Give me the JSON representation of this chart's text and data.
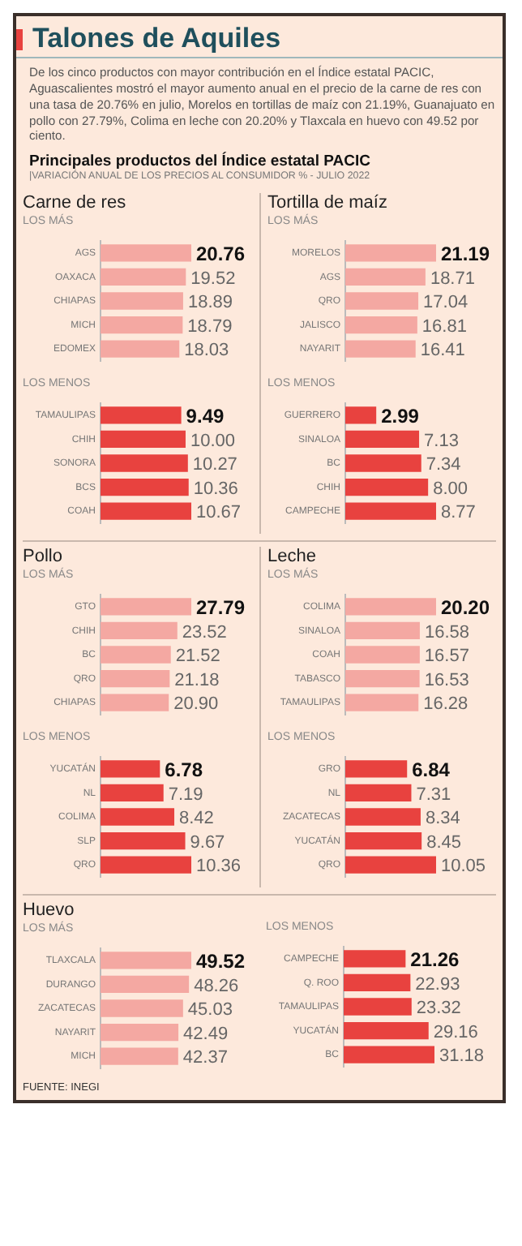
{
  "chart_data": [
    {
      "type": "other",
      "title": "Talones de Aquiles",
      "subtitle": "De los cinco productos con mayor contribución en el Índice estatal PACIC, Aguascalientes mostró el mayor aumento anual en el precio de la carne de res con una tasa de 20.76% en julio, Morelos en tortillas de maíz con 21.19%, Guanajuato en pollo con 27.79%, Colima en leche con 20.20% y Tlaxcala en huevo con 49.52 por ciento.",
      "annotations": [
        "Principales productos del Índice estatal PACIC",
        "|VARIACIÓN ANUAL DE LOS PRECIOS AL CONSUMIDOR % - JULIO 2022"
      ]
    },
    {
      "type": "bar",
      "orientation": "horizontal",
      "title": "Carne de res",
      "subtitle": "LOS MÁS",
      "categories": [
        "AGS",
        "OAXACA",
        "CHIAPAS",
        "MICH",
        "EDOMEX"
      ],
      "values": [
        20.76,
        19.52,
        18.89,
        18.79,
        18.03
      ],
      "value_labels": [
        "20.76",
        "19.52",
        "18.89",
        "18.79",
        "18.03"
      ],
      "color": "#f4a8a2"
    },
    {
      "type": "bar",
      "orientation": "horizontal",
      "subtitle": "LOS MENOS",
      "categories": [
        "TAMAULIPAS",
        "CHIH",
        "SONORA",
        "BCS",
        "COAH"
      ],
      "values": [
        9.49,
        10.0,
        10.27,
        10.36,
        10.67
      ],
      "value_labels": [
        "9.49",
        "10.00",
        "10.27",
        "10.36",
        "10.67"
      ],
      "color": "#e8423f"
    },
    {
      "type": "bar",
      "orientation": "horizontal",
      "title": "Tortilla de maíz",
      "subtitle": "LOS MÁS",
      "categories": [
        "MORELOS",
        "AGS",
        "QRO",
        "JALISCO",
        "NAYARIT"
      ],
      "values": [
        21.19,
        18.71,
        17.04,
        16.81,
        16.41
      ],
      "value_labels": [
        "21.19",
        "18.71",
        "17.04",
        "16.81",
        "16.41"
      ],
      "color": "#f4a8a2"
    },
    {
      "type": "bar",
      "orientation": "horizontal",
      "subtitle": "LOS MENOS",
      "categories": [
        "GUERRERO",
        "SINALOA",
        "BC",
        "CHIH",
        "CAMPECHE"
      ],
      "values": [
        2.99,
        7.13,
        7.34,
        8.0,
        8.77
      ],
      "value_labels": [
        "2.99",
        "7.13",
        "7.34",
        "8.00",
        "8.77"
      ],
      "color": "#e8423f"
    },
    {
      "type": "bar",
      "orientation": "horizontal",
      "title": "Pollo",
      "subtitle": "LOS MÁS",
      "categories": [
        "GTO",
        "CHIH",
        "BC",
        "QRO",
        "CHIAPAS"
      ],
      "values": [
        27.79,
        23.52,
        21.52,
        21.18,
        20.9
      ],
      "value_labels": [
        "27.79",
        "23.52",
        "21.52",
        "21.18",
        "20.90"
      ],
      "color": "#f4a8a2"
    },
    {
      "type": "bar",
      "orientation": "horizontal",
      "subtitle": "LOS MENOS",
      "categories": [
        "YUCATÁN",
        "NL",
        "COLIMA",
        "SLP",
        "QRO"
      ],
      "values": [
        6.78,
        7.19,
        8.42,
        9.67,
        10.36
      ],
      "value_labels": [
        "6.78",
        "7.19",
        "8.42",
        "9.67",
        "10.36"
      ],
      "color": "#e8423f"
    },
    {
      "type": "bar",
      "orientation": "horizontal",
      "title": "Leche",
      "subtitle": "LOS MÁS",
      "categories": [
        "COLIMA",
        "SINALOA",
        "COAH",
        "TABASCO",
        "TAMAULIPAS"
      ],
      "values": [
        20.2,
        16.58,
        16.57,
        16.53,
        16.28
      ],
      "value_labels": [
        "20.20",
        "16.58",
        "16.57",
        "16.53",
        "16.28"
      ],
      "color": "#f4a8a2"
    },
    {
      "type": "bar",
      "orientation": "horizontal",
      "subtitle": "LOS MENOS",
      "categories": [
        "GRO",
        "NL",
        "ZACATECAS",
        "YUCATÁN",
        "QRO"
      ],
      "values": [
        6.84,
        7.31,
        8.34,
        8.45,
        10.05
      ],
      "value_labels": [
        "6.84",
        "7.31",
        "8.34",
        "8.45",
        "10.05"
      ],
      "color": "#e8423f"
    },
    {
      "type": "bar",
      "orientation": "horizontal",
      "title": "Huevo",
      "subtitle": "LOS MÁS",
      "categories": [
        "TLAXCALA",
        "DURANGO",
        "ZACATECAS",
        "NAYARIT",
        "MICH"
      ],
      "values": [
        49.52,
        48.26,
        45.03,
        42.49,
        42.37
      ],
      "value_labels": [
        "49.52",
        "48.26",
        "45.03",
        "42.49",
        "42.37"
      ],
      "color": "#f4a8a2",
      "annotations": [
        "FUENTE: INEGI"
      ]
    },
    {
      "type": "bar",
      "orientation": "horizontal",
      "subtitle": "LOS MENOS",
      "categories": [
        "CAMPECHE",
        "Q. ROO",
        "TAMAULIPAS",
        "YUCATÁN",
        "BC"
      ],
      "values": [
        21.26,
        22.93,
        23.32,
        29.16,
        31.18
      ],
      "value_labels": [
        "21.26",
        "22.93",
        "23.32",
        "29.16",
        "31.18"
      ],
      "color": "#e8423f"
    }
  ]
}
